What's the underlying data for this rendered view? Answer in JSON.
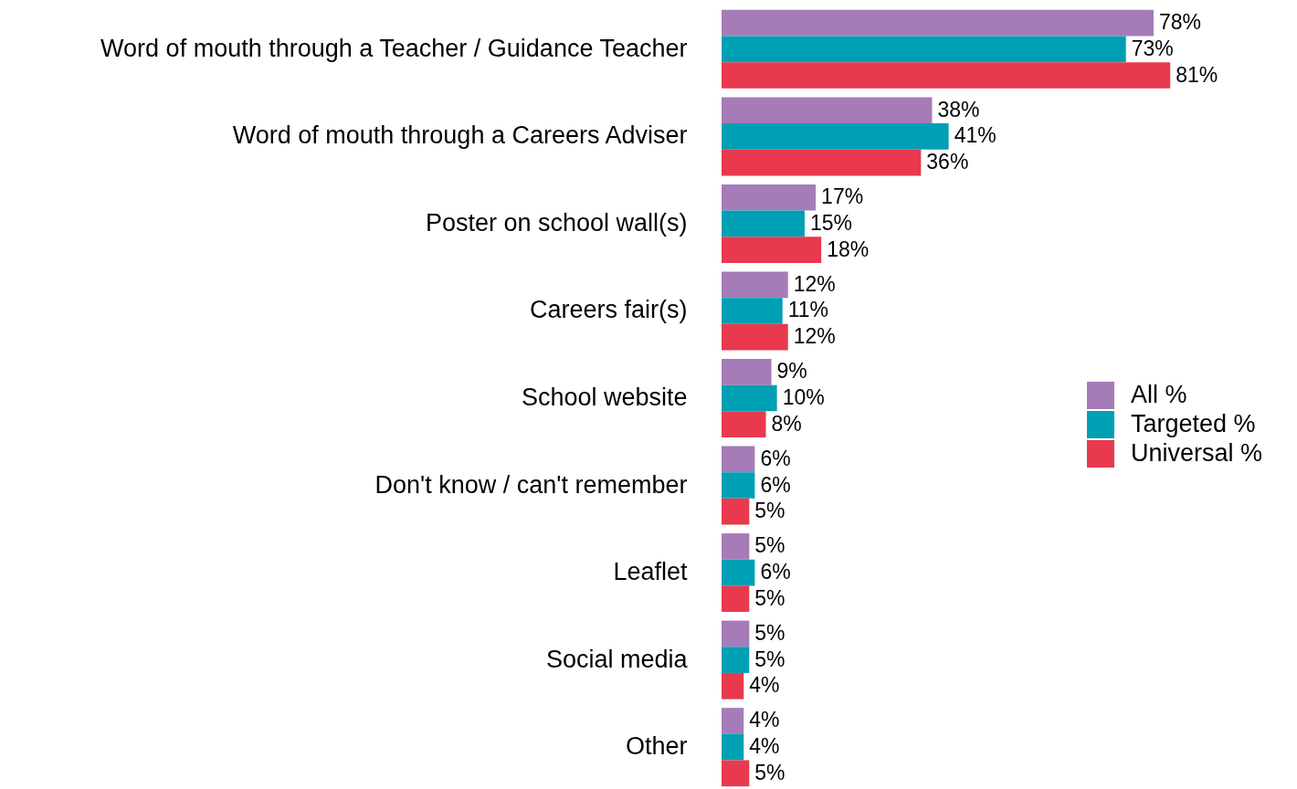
{
  "chart_data": {
    "type": "bar",
    "orientation": "horizontal",
    "categories": [
      "Word of mouth through a Teacher / Guidance Teacher",
      "Word of mouth through a Careers Adviser",
      "Poster on school wall(s)",
      "Careers fair(s)",
      "School website",
      "Don't know / can't remember",
      "Leaflet",
      "Social media",
      "Other"
    ],
    "series": [
      {
        "name": "All %",
        "color": "#a57cb8",
        "values": [
          78,
          38,
          17,
          12,
          9,
          6,
          5,
          5,
          4
        ],
        "value_labels": [
          "78%",
          "38%",
          "17%",
          "12%",
          "9%",
          "6%",
          "5%",
          "5%",
          "4%"
        ]
      },
      {
        "name": "Targeted %",
        "color": "#00a0b4",
        "values": [
          73,
          41,
          15,
          11,
          10,
          6,
          6,
          5,
          4
        ],
        "value_labels": [
          "73%",
          "41%",
          "15%",
          "11%",
          "10%",
          "6%",
          "6%",
          "5%",
          "4%"
        ]
      },
      {
        "name": "Universal %",
        "color": "#e8394e",
        "values": [
          81,
          36,
          18,
          12,
          8,
          5,
          5,
          4,
          5
        ],
        "value_labels": [
          "81%",
          "36%",
          "18%",
          "12%",
          "8%",
          "5%",
          "5%",
          "4%",
          "5%"
        ]
      }
    ],
    "legend": "right",
    "tick_labels": "y"
  }
}
